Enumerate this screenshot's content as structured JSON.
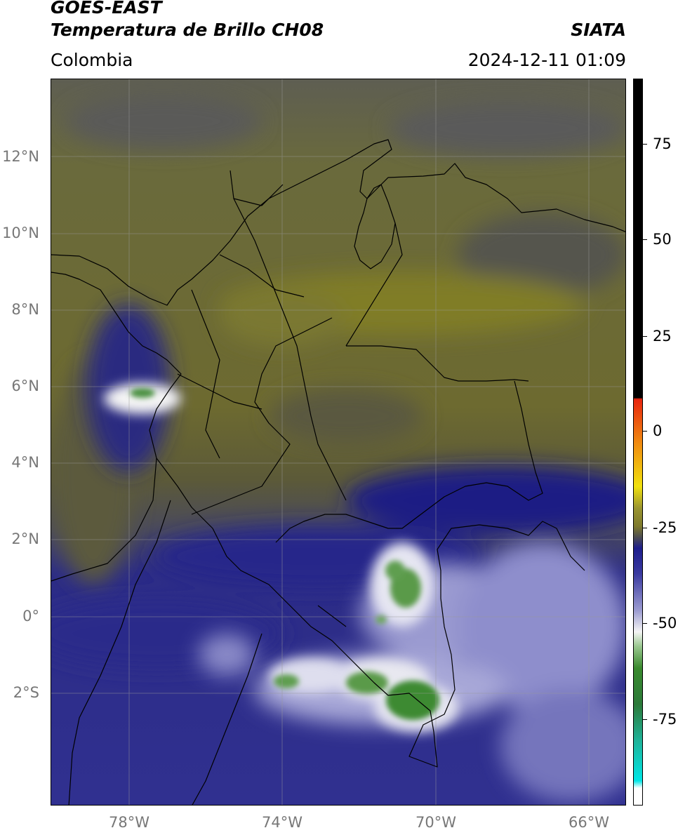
{
  "header": {
    "title_line1": "GOES-EAST",
    "title_line2": "Temperatura de Brillo CH08",
    "region": "Colombia",
    "source": "SIATA",
    "datetime": "2024-12-11 01:09"
  },
  "map": {
    "lat_labels": [
      "12°N",
      "10°N",
      "8°N",
      "6°N",
      "4°N",
      "2°N",
      "0°",
      "2°S"
    ],
    "lon_labels": [
      "78°W",
      "74°W",
      "70°W",
      "66°W"
    ]
  },
  "colorbar": {
    "ticks": [
      "75",
      "50",
      "25",
      "0",
      "-25",
      "-50",
      "-75"
    ],
    "colors": {
      "warm": "#000000",
      "red": "#e8250f",
      "orange": "#f08a10",
      "yellow": "#f1e10e",
      "olive": "#7e7a2c",
      "gray": "#4c4c52",
      "navy": "#1e1e8c",
      "lavender": "#c8c8e6",
      "white": "#f5f5f5",
      "green": "#3a8a2e",
      "teal": "#1fb39a",
      "cyan": "#00e6e6"
    }
  }
}
